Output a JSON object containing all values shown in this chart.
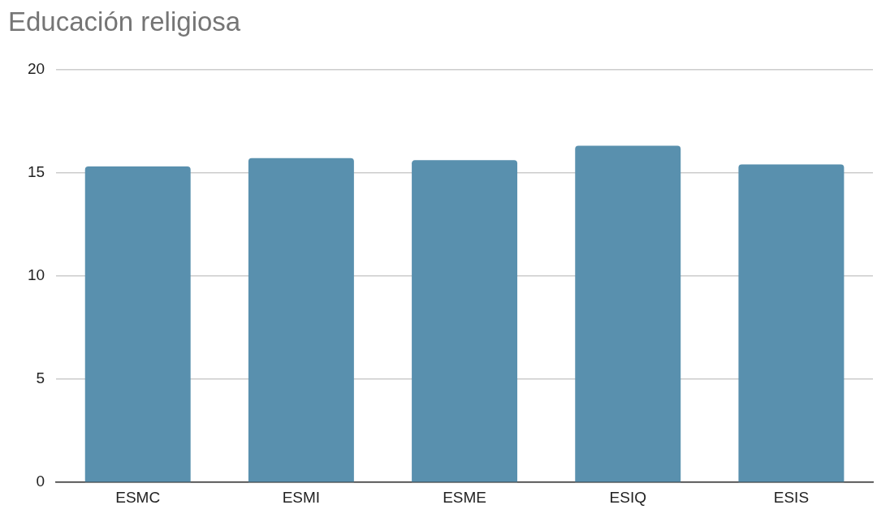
{
  "chart_data": {
    "type": "bar",
    "title": "Educación religiosa",
    "categories": [
      "ESMC",
      "ESMI",
      "ESME",
      "ESIQ",
      "ESIS"
    ],
    "values": [
      15.3,
      15.7,
      15.6,
      16.3,
      15.4
    ],
    "color": "#5990ae",
    "ylim": [
      0,
      20
    ],
    "yticks": [
      0,
      5,
      10,
      15,
      20
    ],
    "grid": "y",
    "legend": false
  }
}
